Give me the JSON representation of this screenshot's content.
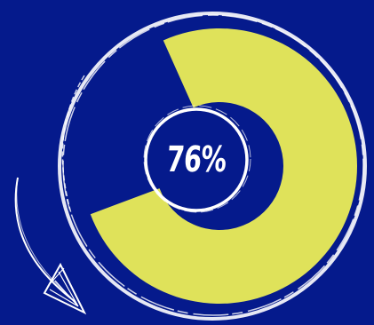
{
  "chart_data": {
    "type": "pie",
    "values": [
      76,
      24
    ],
    "value_percent": 76,
    "label": "76%"
  },
  "colors": {
    "background": "#051a8c",
    "fill": "#dfe25a",
    "outline": "#ffffff",
    "track": "#051a8c"
  },
  "icons": [
    "curved-arrow-icon"
  ]
}
